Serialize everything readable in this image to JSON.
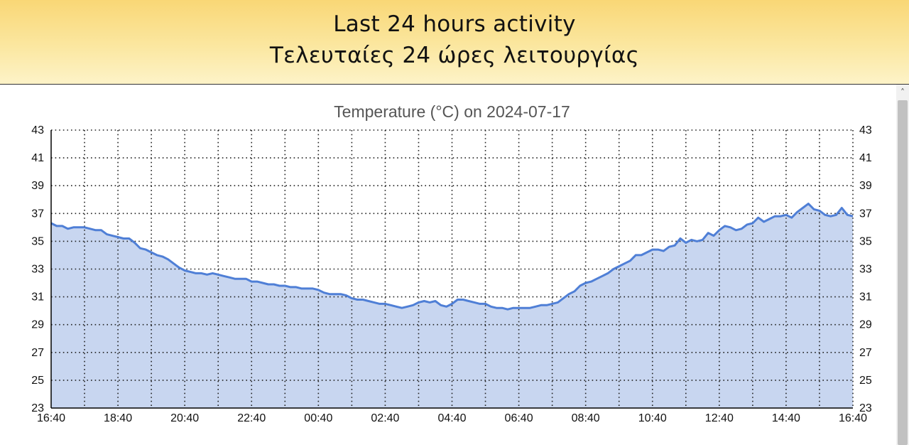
{
  "header": {
    "line1": "Last 24 hours activity",
    "line2": "Τελευταίες 24 ώρες λειτουργίας",
    "gradient_top": "#f9d776",
    "gradient_bottom": "#fdf3c8"
  },
  "scrollbar": {
    "up_icon": "chevron-up-icon"
  },
  "chart_data": {
    "type": "area",
    "title": "Temperature (°C) on 2024-07-17",
    "xlabel": "",
    "ylabel": "",
    "ylim": [
      23,
      43
    ],
    "y_ticks": [
      23,
      25,
      27,
      29,
      31,
      33,
      35,
      37,
      39,
      41,
      43
    ],
    "x_tick_labels": [
      "16:40",
      "18:40",
      "20:40",
      "22:40",
      "00:40",
      "02:40",
      "04:40",
      "06:40",
      "08:40",
      "10:40",
      "12:40",
      "14:40",
      "16:40"
    ],
    "grid": true,
    "line_color": "#4f7fd6",
    "fill_color": "#c8d6f0",
    "series": [
      {
        "values": [
          36.3,
          36.1,
          36.1,
          35.9,
          36.0,
          36.0,
          36.0,
          35.9,
          35.8,
          35.8,
          35.5,
          35.4,
          35.3,
          35.2,
          35.2,
          34.9,
          34.5,
          34.4,
          34.2,
          34.0,
          33.9,
          33.7,
          33.4,
          33.1,
          32.9,
          32.8,
          32.7,
          32.7,
          32.6,
          32.7,
          32.6,
          32.5,
          32.4,
          32.3,
          32.3,
          32.3,
          32.1,
          32.1,
          32.0,
          31.9,
          31.9,
          31.8,
          31.8,
          31.7,
          31.7,
          31.6,
          31.6,
          31.6,
          31.5,
          31.3,
          31.2,
          31.2,
          31.2,
          31.1,
          30.9,
          30.8,
          30.8,
          30.7,
          30.6,
          30.5,
          30.5,
          30.4,
          30.3,
          30.2,
          30.3,
          30.4,
          30.6,
          30.7,
          30.6,
          30.7,
          30.4,
          30.3,
          30.5,
          30.8,
          30.8,
          30.7,
          30.6,
          30.5,
          30.5,
          30.3,
          30.2,
          30.2,
          30.1,
          30.2,
          30.2,
          30.2,
          30.2,
          30.3,
          30.4,
          30.4,
          30.5,
          30.6,
          30.9,
          31.2,
          31.4,
          31.8,
          32.0,
          32.1,
          32.3,
          32.5,
          32.7,
          33.0,
          33.2,
          33.4,
          33.6,
          34.0,
          34.0,
          34.2,
          34.4,
          34.4,
          34.3,
          34.6,
          34.7,
          35.2,
          34.9,
          35.1,
          35.0,
          35.1,
          35.6,
          35.4,
          35.8,
          36.1,
          36.0,
          35.8,
          35.9,
          36.2,
          36.3,
          36.7,
          36.4,
          36.6,
          36.8,
          36.8,
          36.9,
          36.7,
          37.1,
          37.4,
          37.7,
          37.3,
          37.2,
          36.9,
          36.8,
          36.9,
          37.4,
          36.9,
          36.8
        ]
      }
    ]
  }
}
